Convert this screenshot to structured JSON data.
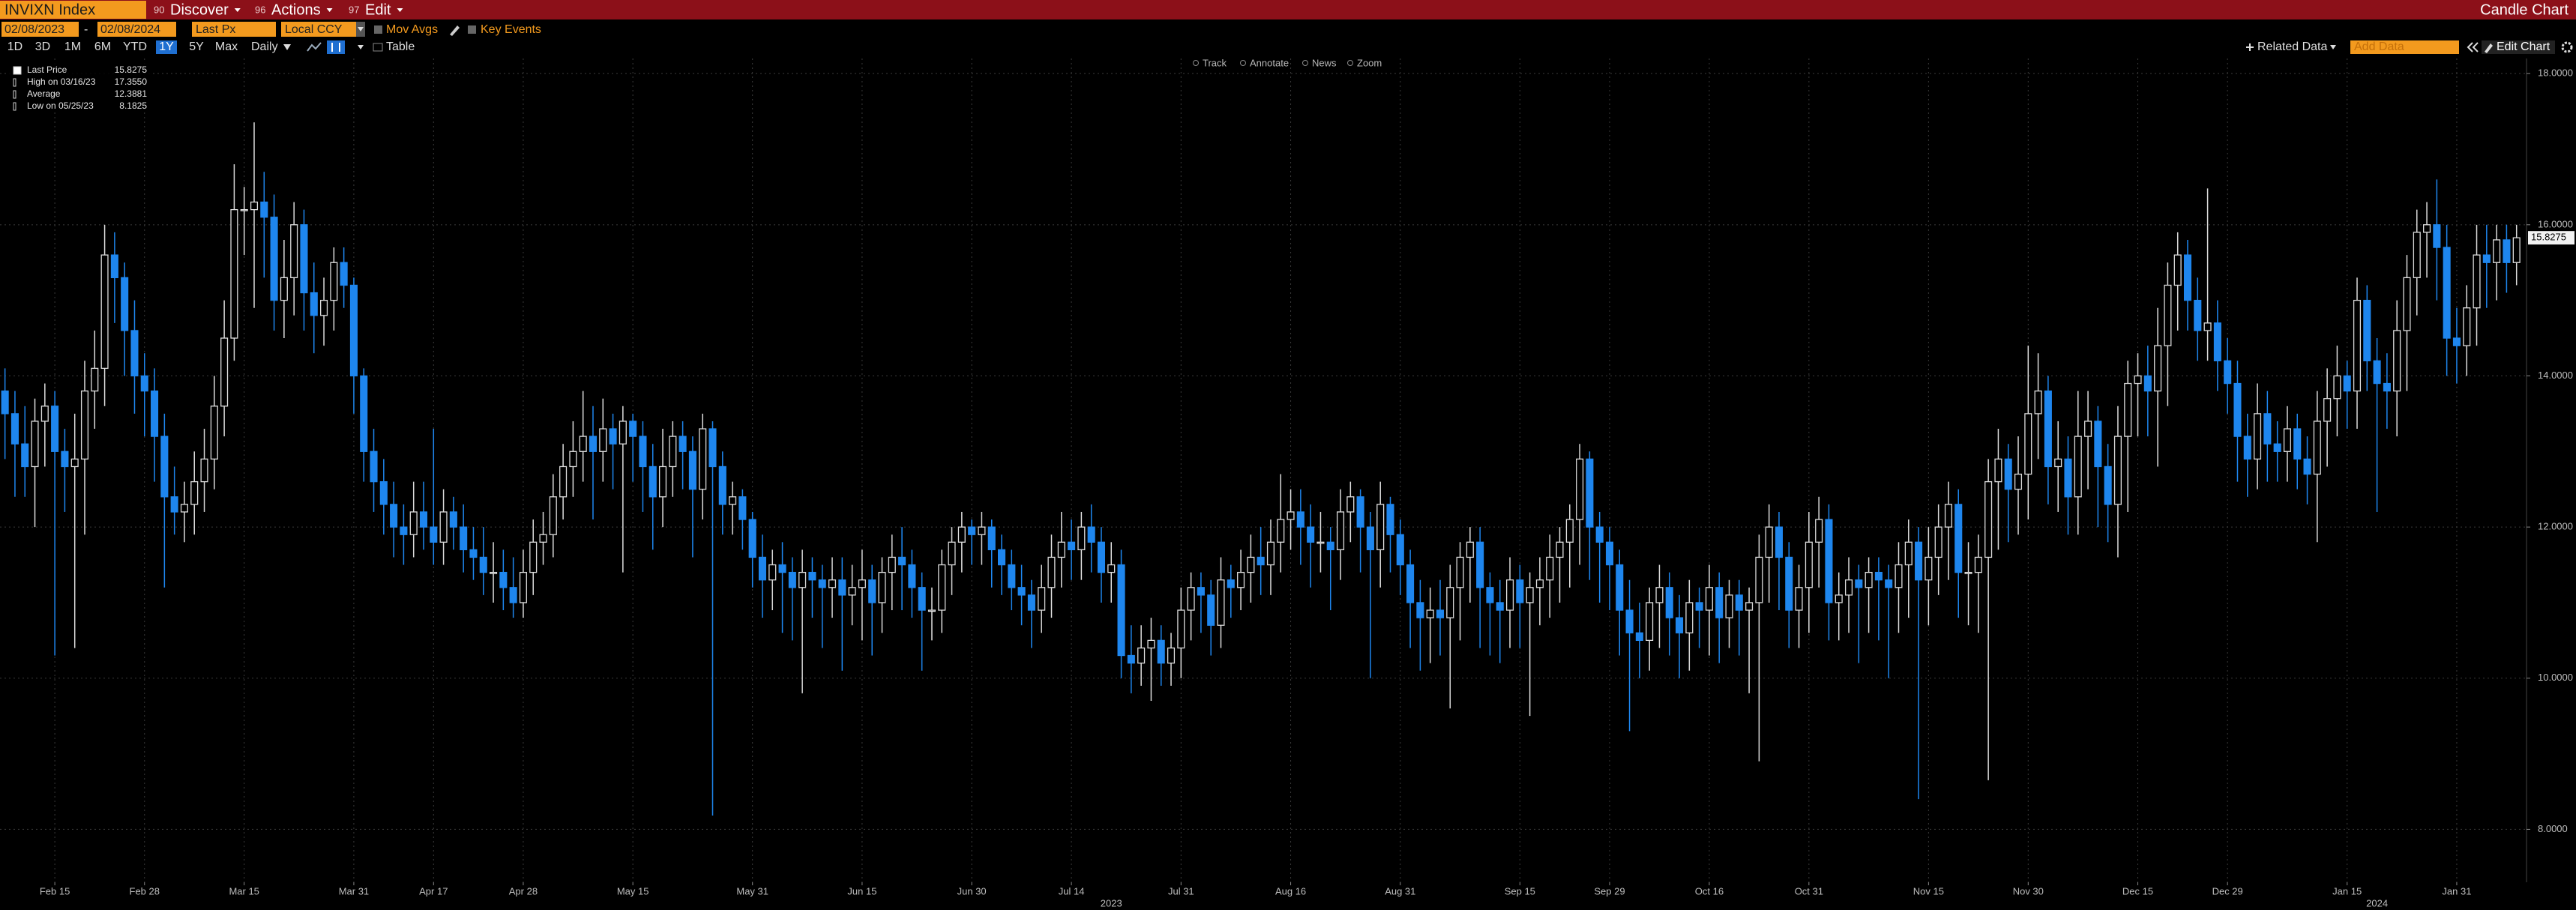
{
  "header": {
    "security": "INVIXN Index",
    "menus": [
      {
        "key": "90",
        "label": "Discover"
      },
      {
        "key": "96",
        "label": "Actions"
      },
      {
        "key": "97",
        "label": "Edit"
      }
    ],
    "view": "Candle Chart"
  },
  "controls": {
    "start_date": "02/08/2023",
    "separator": "-",
    "end_date": "02/08/2024",
    "field": "Last Px",
    "currency": "Local CCY",
    "mov_avgs": "Mov Avgs",
    "key_events": "Key Events",
    "ranges": [
      "1D",
      "3D",
      "1M",
      "6M",
      "YTD",
      "1Y",
      "5Y",
      "Max"
    ],
    "active_range": 5,
    "period": "Daily",
    "table": "Table",
    "related_data": "Related Data",
    "add_data": "Add Data",
    "edit_chart": "Edit Chart"
  },
  "tools": [
    "Track",
    "Annotate",
    "News",
    "Zoom"
  ],
  "stats": [
    {
      "label": "Last Price",
      "value": 15.8275
    },
    {
      "label": "High on 03/16/23",
      "value": 17.355,
      "value_label": "17.3550"
    },
    {
      "label": "Average",
      "value": 12.3881
    },
    {
      "label": "Low on 05/25/23",
      "value": 8.1825
    }
  ],
  "chart_data": {
    "type": "candlestick",
    "colors": {
      "up": "#dcdcdc",
      "down": "#1e86ee"
    },
    "grid": true,
    "xlim": [
      -0.5,
      253
    ],
    "xticks": [
      {
        "value": 5,
        "label": "Feb 15"
      },
      {
        "value": 14,
        "label": "Feb 28"
      },
      {
        "value": 24,
        "label": "Mar 15"
      },
      {
        "value": 35,
        "label": "Mar 31"
      },
      {
        "value": 43,
        "label": "Apr 17"
      },
      {
        "value": 52,
        "label": "Apr 28"
      },
      {
        "value": 63,
        "label": "May 15"
      },
      {
        "value": 75,
        "label": "May 31"
      },
      {
        "value": 86,
        "label": "Jun 15"
      },
      {
        "value": 97,
        "label": "Jun 30"
      },
      {
        "value": 107,
        "label": "Jul 14"
      },
      {
        "value": 118,
        "label": "Jul 31"
      },
      {
        "value": 129,
        "label": "Aug 16"
      },
      {
        "value": 140,
        "label": "Aug 31"
      },
      {
        "value": 152,
        "label": "Sep 15"
      },
      {
        "value": 161,
        "label": "Sep 29"
      },
      {
        "value": 171,
        "label": "Oct 16"
      },
      {
        "value": 181,
        "label": "Oct 31"
      },
      {
        "value": 193,
        "label": "Nov 15"
      },
      {
        "value": 203,
        "label": "Nov 30"
      },
      {
        "value": 214,
        "label": "Dec 15"
      },
      {
        "value": 223,
        "label": "Dec 29"
      },
      {
        "value": 235,
        "label": "Jan 15"
      },
      {
        "value": 246,
        "label": "Jan 31"
      }
    ],
    "x_year_labels": [
      {
        "value": 111,
        "label": "2023"
      },
      {
        "value": 238,
        "label": "2024"
      }
    ],
    "ylim": [
      7.3,
      18.2
    ],
    "yticks": [
      {
        "value": 8,
        "label": "8.0000"
      },
      {
        "value": 10,
        "label": "10.0000"
      },
      {
        "value": 12,
        "label": "12.0000"
      },
      {
        "value": 14,
        "label": "14.0000"
      },
      {
        "value": 16,
        "label": "16.0000"
      },
      {
        "value": 18,
        "label": "18.0000"
      }
    ],
    "open": [
      13.8,
      13.5,
      13.1,
      12.8,
      13.4,
      13.6,
      13.0,
      12.8,
      12.9,
      13.8,
      14.1,
      15.6,
      15.3,
      14.6,
      14.0,
      13.8,
      13.2,
      12.4,
      12.2,
      12.3,
      12.6,
      12.9,
      13.6,
      14.5,
      16.2,
      16.2,
      16.3,
      16.1,
      15.0,
      15.3,
      16.0,
      15.1,
      14.8,
      15.0,
      15.5,
      15.2,
      14.0,
      13.0,
      12.6,
      12.3,
      12.0,
      11.9,
      12.2,
      12.0,
      11.8,
      12.2,
      12.0,
      11.7,
      11.6,
      11.4,
      11.4,
      11.2,
      11.0,
      11.4,
      11.8,
      11.9,
      12.4,
      12.8,
      13.0,
      13.2,
      13.0,
      13.3,
      13.1,
      13.4,
      13.2,
      12.8,
      12.4,
      12.8,
      13.2,
      13.0,
      12.5,
      13.3,
      12.8,
      12.3,
      12.4,
      12.1,
      11.6,
      11.3,
      11.5,
      11.4,
      11.2,
      11.4,
      11.3,
      11.2,
      11.3,
      11.1,
      11.2,
      11.3,
      11.0,
      11.4,
      11.6,
      11.5,
      11.2,
      10.9,
      10.9,
      11.5,
      11.8,
      12.0,
      11.9,
      12.0,
      11.7,
      11.5,
      11.2,
      11.1,
      10.9,
      11.2,
      11.6,
      11.8,
      11.7,
      12.0,
      11.8,
      11.4,
      11.5,
      10.3,
      10.2,
      10.4,
      10.5,
      10.2,
      10.4,
      10.9,
      11.2,
      11.1,
      10.7,
      11.3,
      11.2,
      11.4,
      11.6,
      11.5,
      11.8,
      12.1,
      12.2,
      12.0,
      11.8,
      11.8,
      11.7,
      12.2,
      12.4,
      12.0,
      11.7,
      12.3,
      11.9,
      11.5,
      11.0,
      10.8,
      10.9,
      10.8,
      11.2,
      11.6,
      11.8,
      11.2,
      11.0,
      10.9,
      11.3,
      11.0,
      11.2,
      11.3,
      11.6,
      11.8,
      12.1,
      12.9,
      12.0,
      11.8,
      11.5,
      10.9,
      10.6,
      10.5,
      11.0,
      11.2,
      10.8,
      10.6,
      11.0,
      10.9,
      11.2,
      10.8,
      11.1,
      10.9,
      11.0,
      11.6,
      12.0,
      11.6,
      10.9,
      11.2,
      11.8,
      12.1,
      11.0,
      11.1,
      11.3,
      11.2,
      11.4,
      11.3,
      11.2,
      11.5,
      11.8,
      11.3,
      11.6,
      12.0,
      12.3,
      11.4,
      11.4,
      11.6,
      12.6,
      12.9,
      12.5,
      12.7,
      13.5,
      13.8,
      12.8,
      12.9,
      12.4,
      13.2,
      13.4,
      12.8,
      12.3,
      13.2,
      13.9,
      14.0,
      13.8,
      14.4,
      15.2,
      15.6,
      15.0,
      14.6,
      14.7,
      14.2,
      13.9,
      13.2,
      12.9,
      13.5,
      13.1,
      13.0,
      13.3,
      12.9,
      12.7,
      13.4,
      13.7,
      14.0,
      13.8,
      15.0,
      14.2,
      13.9,
      13.8,
      14.6,
      15.3,
      15.9,
      16.0,
      15.7,
      14.5,
      14.4,
      14.9,
      15.6,
      15.5,
      15.8,
      15.5
    ],
    "high": [
      14.1,
      13.8,
      13.6,
      13.7,
      13.9,
      13.8,
      13.3,
      13.5,
      14.2,
      14.6,
      16.0,
      15.9,
      15.5,
      15.0,
      14.3,
      14.1,
      13.5,
      12.8,
      12.6,
      13.0,
      13.3,
      14.0,
      15.0,
      16.8,
      16.5,
      17.355,
      16.7,
      16.4,
      15.8,
      16.3,
      16.2,
      15.5,
      15.3,
      15.7,
      15.7,
      15.3,
      14.1,
      13.3,
      12.9,
      12.6,
      12.3,
      12.6,
      12.6,
      13.3,
      12.5,
      12.4,
      12.3,
      12.0,
      12.0,
      11.8,
      11.7,
      11.6,
      11.7,
      12.1,
      12.2,
      12.7,
      13.1,
      13.4,
      13.8,
      13.6,
      13.7,
      13.5,
      13.6,
      13.5,
      13.4,
      13.1,
      13.3,
      13.4,
      13.4,
      13.2,
      13.5,
      13.4,
      13.0,
      12.6,
      12.5,
      12.2,
      11.9,
      11.7,
      11.8,
      11.6,
      11.7,
      11.6,
      11.5,
      11.6,
      11.6,
      11.5,
      11.7,
      11.5,
      11.6,
      11.9,
      12.0,
      11.7,
      11.4,
      11.2,
      11.7,
      12.0,
      12.2,
      12.1,
      12.2,
      12.1,
      11.9,
      11.7,
      11.5,
      11.3,
      11.5,
      11.9,
      12.2,
      12.1,
      12.2,
      12.3,
      12.0,
      11.8,
      11.7,
      10.7,
      10.7,
      10.8,
      10.7,
      10.6,
      11.2,
      11.4,
      11.4,
      11.3,
      11.6,
      11.5,
      11.7,
      11.9,
      12.0,
      12.1,
      12.7,
      12.5,
      12.5,
      12.3,
      12.2,
      12.0,
      12.5,
      12.6,
      12.5,
      12.2,
      12.6,
      12.4,
      12.1,
      11.7,
      11.3,
      11.2,
      11.3,
      11.5,
      11.8,
      12.0,
      12.0,
      11.4,
      11.3,
      11.6,
      11.5,
      11.4,
      11.6,
      11.9,
      12.0,
      12.3,
      13.1,
      13.0,
      12.2,
      12.0,
      11.7,
      11.3,
      11.0,
      11.2,
      11.5,
      11.4,
      11.1,
      11.3,
      11.2,
      11.5,
      11.4,
      11.3,
      11.3,
      11.2,
      11.9,
      12.3,
      12.2,
      11.8,
      11.5,
      12.2,
      12.4,
      12.3,
      11.4,
      11.6,
      11.5,
      11.6,
      11.6,
      11.5,
      11.8,
      12.1,
      12.0,
      12.0,
      12.3,
      12.6,
      12.5,
      11.8,
      11.9,
      12.9,
      13.3,
      13.1,
      13.2,
      14.4,
      14.3,
      14.0,
      13.4,
      13.2,
      13.8,
      13.8,
      13.6,
      13.1,
      13.6,
      14.2,
      14.3,
      14.4,
      14.9,
      15.5,
      15.9,
      15.8,
      15.3,
      16.48,
      15.0,
      14.5,
      14.2,
      13.5,
      13.9,
      13.8,
      13.4,
      13.6,
      13.5,
      13.2,
      13.8,
      14.1,
      14.4,
      14.2,
      15.3,
      15.2,
      14.5,
      14.3,
      15.0,
      15.6,
      16.2,
      16.3,
      16.6,
      16.0,
      14.9,
      15.2,
      16.0,
      16.0,
      16.0,
      16.0,
      16.0
    ],
    "low": [
      12.9,
      12.4,
      12.4,
      12.0,
      12.8,
      10.3,
      12.2,
      10.4,
      11.9,
      13.3,
      13.6,
      14.7,
      14.0,
      13.5,
      13.2,
      12.6,
      11.2,
      11.9,
      11.8,
      11.9,
      12.2,
      12.5,
      13.2,
      14.2,
      15.6,
      14.9,
      15.3,
      14.6,
      14.5,
      14.8,
      14.6,
      14.3,
      14.4,
      14.6,
      14.9,
      13.5,
      12.6,
      12.2,
      11.9,
      11.6,
      11.5,
      11.6,
      11.7,
      11.5,
      11.5,
      11.7,
      11.4,
      11.3,
      11.1,
      11.0,
      10.9,
      10.8,
      10.8,
      11.1,
      11.5,
      11.6,
      12.1,
      12.4,
      12.6,
      12.1,
      12.6,
      12.5,
      11.4,
      12.6,
      12.2,
      11.7,
      12.0,
      12.4,
      12.5,
      11.6,
      12.1,
      8.1825,
      11.9,
      11.9,
      11.7,
      11.2,
      10.8,
      10.9,
      10.6,
      10.5,
      9.8,
      10.8,
      10.4,
      10.8,
      10.1,
      10.7,
      10.5,
      10.3,
      10.6,
      10.9,
      10.9,
      10.8,
      10.1,
      10.5,
      10.6,
      11.1,
      11.4,
      11.5,
      11.5,
      11.2,
      11.1,
      10.9,
      10.7,
      10.4,
      10.6,
      10.8,
      11.2,
      11.3,
      11.3,
      11.4,
      11.0,
      11.0,
      10.0,
      9.8,
      9.9,
      9.7,
      9.9,
      9.9,
      10.0,
      10.5,
      10.6,
      10.3,
      10.4,
      10.8,
      10.9,
      11.0,
      11.1,
      11.1,
      11.4,
      11.7,
      11.5,
      11.2,
      11.4,
      10.9,
      11.3,
      11.8,
      11.4,
      10.0,
      11.2,
      11.4,
      11.1,
      10.4,
      10.1,
      10.2,
      10.3,
      9.6,
      10.5,
      11.0,
      10.4,
      10.3,
      10.2,
      10.4,
      10.4,
      9.5,
      10.7,
      10.8,
      11.0,
      11.2,
      11.5,
      11.3,
      11.0,
      10.9,
      10.3,
      9.3,
      10.0,
      10.1,
      10.4,
      10.3,
      10.0,
      10.1,
      10.4,
      10.3,
      10.2,
      10.4,
      10.3,
      9.8,
      8.9,
      11.0,
      10.9,
      10.4,
      10.4,
      10.6,
      11.2,
      10.5,
      10.5,
      10.6,
      10.2,
      10.6,
      10.5,
      10.0,
      10.6,
      10.8,
      8.4,
      10.7,
      11.1,
      11.3,
      10.8,
      10.7,
      10.6,
      8.65,
      11.7,
      11.8,
      11.9,
      12.1,
      12.9,
      12.3,
      12.2,
      11.9,
      11.9,
      12.5,
      12.0,
      11.8,
      11.6,
      12.2,
      13.2,
      13.2,
      12.8,
      13.6,
      14.6,
      14.6,
      14.2,
      14.2,
      13.8,
      13.5,
      12.6,
      12.4,
      12.5,
      12.6,
      12.6,
      12.6,
      12.5,
      12.3,
      11.8,
      12.8,
      13.2,
      13.3,
      13.3,
      13.8,
      12.2,
      13.3,
      13.2,
      13.8,
      14.8,
      15.3,
      15.0,
      14.0,
      13.9,
      14.0,
      14.4,
      14.9,
      15.0,
      15.1,
      15.2
    ],
    "close": [
      13.5,
      13.1,
      12.8,
      13.4,
      13.6,
      13.0,
      12.8,
      12.9,
      13.8,
      14.1,
      15.6,
      15.3,
      14.6,
      14.0,
      13.8,
      13.2,
      12.4,
      12.2,
      12.3,
      12.6,
      12.9,
      13.6,
      14.5,
      16.2,
      16.2,
      16.3,
      16.1,
      15.0,
      15.3,
      16.0,
      15.1,
      14.8,
      15.0,
      15.5,
      15.2,
      14.0,
      13.0,
      12.6,
      12.3,
      12.0,
      11.9,
      12.2,
      12.0,
      11.8,
      12.2,
      12.0,
      11.7,
      11.6,
      11.4,
      11.4,
      11.2,
      11.0,
      11.4,
      11.8,
      11.9,
      12.4,
      12.8,
      13.0,
      13.2,
      13.0,
      13.3,
      13.1,
      13.4,
      13.2,
      12.8,
      12.4,
      12.8,
      13.2,
      13.0,
      12.5,
      13.3,
      12.8,
      12.3,
      12.4,
      12.1,
      11.6,
      11.3,
      11.5,
      11.4,
      11.2,
      11.4,
      11.3,
      11.2,
      11.3,
      11.1,
      11.2,
      11.3,
      11.0,
      11.4,
      11.6,
      11.5,
      11.2,
      10.9,
      10.9,
      11.5,
      11.8,
      12.0,
      11.9,
      12.0,
      11.7,
      11.5,
      11.2,
      11.1,
      10.9,
      11.2,
      11.6,
      11.8,
      11.7,
      12.0,
      11.8,
      11.4,
      11.5,
      10.3,
      10.2,
      10.4,
      10.5,
      10.2,
      10.4,
      10.9,
      11.2,
      11.1,
      10.7,
      11.3,
      11.2,
      11.4,
      11.6,
      11.5,
      11.8,
      12.1,
      12.2,
      12.0,
      11.8,
      11.8,
      11.7,
      12.2,
      12.4,
      12.0,
      11.7,
      12.3,
      11.9,
      11.5,
      11.0,
      10.8,
      10.9,
      10.8,
      11.2,
      11.6,
      11.8,
      11.2,
      11.0,
      10.9,
      11.3,
      11.0,
      11.2,
      11.3,
      11.6,
      11.8,
      12.1,
      12.9,
      12.0,
      11.8,
      11.5,
      10.9,
      10.6,
      10.5,
      11.0,
      11.2,
      10.8,
      10.6,
      11.0,
      10.9,
      11.2,
      10.8,
      11.1,
      10.9,
      11.0,
      11.6,
      12.0,
      11.6,
      10.9,
      11.2,
      11.8,
      12.1,
      11.0,
      11.1,
      11.3,
      11.2,
      11.4,
      11.3,
      11.2,
      11.5,
      11.8,
      11.3,
      11.6,
      12.0,
      12.3,
      11.4,
      11.4,
      11.6,
      12.6,
      12.9,
      12.5,
      12.7,
      13.5,
      13.8,
      12.8,
      12.9,
      12.4,
      13.2,
      13.4,
      12.8,
      12.3,
      13.2,
      13.9,
      14.0,
      13.8,
      14.4,
      15.2,
      15.6,
      15.0,
      14.6,
      14.7,
      14.2,
      13.9,
      13.2,
      12.9,
      13.5,
      13.1,
      13.0,
      13.3,
      12.9,
      12.7,
      13.4,
      13.7,
      14.0,
      13.8,
      15.0,
      14.2,
      13.9,
      13.8,
      14.6,
      15.3,
      15.9,
      16.0,
      15.7,
      14.5,
      14.4,
      14.9,
      15.6,
      15.5,
      15.8,
      15.5,
      15.8275
    ]
  }
}
